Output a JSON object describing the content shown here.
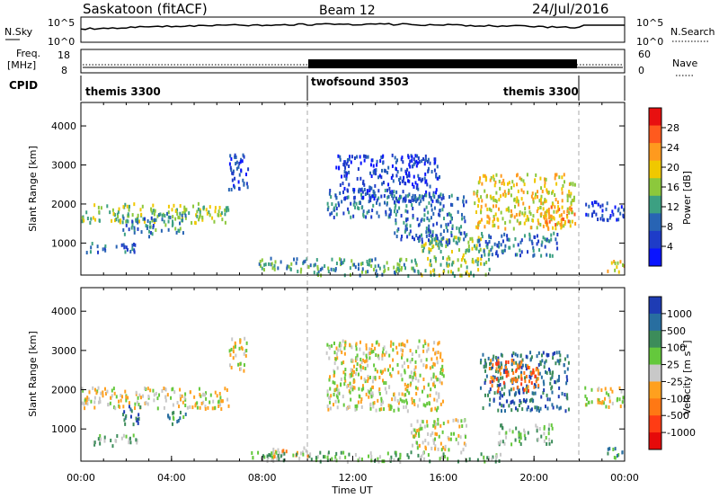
{
  "header": {
    "station": "Saskatoon (fitACF)",
    "beam": "Beam 12",
    "date": "24/Jul/2016"
  },
  "nsky_panel": {
    "left_label": "N.Sky",
    "right_label": "N.Search",
    "left_ticks": [
      "10^5",
      "10^0"
    ],
    "right_ticks": [
      "10^5",
      "10^0"
    ]
  },
  "freq_panel": {
    "left_label_top": "Freq.",
    "left_label_bottom": "[MHz]",
    "left_ticks": [
      "18",
      "8"
    ],
    "right_label": "Nave",
    "right_ticks": [
      "60",
      "0"
    ]
  },
  "cpid_panel": {
    "label": "CPID",
    "segments": [
      {
        "name": "themis 3300",
        "start_hour": 0,
        "end_hour": 10
      },
      {
        "name": "twofsound 3503",
        "start_hour": 10,
        "end_hour": 22
      },
      {
        "name": "themis 3300",
        "start_hour": 22,
        "end_hour": 24
      }
    ]
  },
  "power_colorbar": {
    "label": "Power [dB]",
    "ticks": [
      "28",
      "24",
      "20",
      "16",
      "12",
      "8",
      "4"
    ],
    "colors": [
      "#e81010",
      "#ff5a1e",
      "#ff9a1e",
      "#f0c800",
      "#8cc83c",
      "#3ca082",
      "#2864b4",
      "#1e3cc8",
      "#0a14ff"
    ]
  },
  "velocity_colorbar": {
    "label": "Velocity [m s",
    "label_sup": "-1",
    "label_end": "]",
    "ticks": [
      "1000",
      "500",
      "100",
      "25",
      "-25",
      "-100",
      "-500",
      "-1000"
    ],
    "colors": [
      "#1e3cb4",
      "#286ea0",
      "#3c8c5a",
      "#64c83c",
      "#c8c8c8",
      "#ffa01e",
      "#ff7814",
      "#ff3c14",
      "#e60a0a"
    ]
  },
  "chart_data": [
    {
      "type": "heatmap",
      "name": "power",
      "ylabel": "Slant Range [km]",
      "yticks": [
        1000,
        2000,
        3000,
        4000
      ],
      "ylim": [
        180,
        4600
      ],
      "xlim": [
        0,
        24
      ],
      "regions": [
        {
          "t0": 0.0,
          "t1": 6.5,
          "r0": 1550,
          "r1": 2050,
          "level": 4
        },
        {
          "t0": 1.8,
          "t1": 3.2,
          "r0": 1200,
          "r1": 1700,
          "level": 6
        },
        {
          "t0": 3.0,
          "t1": 4.6,
          "r0": 1300,
          "r1": 1800,
          "level": 5
        },
        {
          "t0": 0.2,
          "t1": 2.5,
          "r0": 800,
          "r1": 1050,
          "level": 6
        },
        {
          "t0": 6.5,
          "t1": 7.4,
          "r0": 2400,
          "r1": 3400,
          "level": 7
        },
        {
          "t0": 7.8,
          "t1": 10.0,
          "r0": 300,
          "r1": 650,
          "level": 5
        },
        {
          "t0": 10.0,
          "t1": 15.0,
          "r0": 200,
          "r1": 650,
          "level": 5
        },
        {
          "t0": 15.0,
          "t1": 18.0,
          "r0": 200,
          "r1": 1200,
          "level": 4
        },
        {
          "t0": 10.8,
          "t1": 14.0,
          "r0": 1700,
          "r1": 2400,
          "level": 6
        },
        {
          "t0": 11.2,
          "t1": 15.8,
          "r0": 2100,
          "r1": 3300,
          "level": 7
        },
        {
          "t0": 13.8,
          "t1": 17.0,
          "r0": 1000,
          "r1": 2300,
          "level": 6
        },
        {
          "t0": 17.3,
          "t1": 21.8,
          "r0": 1400,
          "r1": 2800,
          "level": 3
        },
        {
          "t0": 17.5,
          "t1": 21.0,
          "r0": 700,
          "r1": 1300,
          "level": 6
        },
        {
          "t0": 20.5,
          "t1": 21.8,
          "r0": 1500,
          "r1": 2000,
          "level": 2
        },
        {
          "t0": 22.2,
          "t1": 24.0,
          "r0": 1600,
          "r1": 2100,
          "level": 7
        },
        {
          "t0": 23.2,
          "t1": 24.0,
          "r0": 300,
          "r1": 600,
          "level": 3
        }
      ]
    },
    {
      "type": "heatmap",
      "name": "velocity",
      "ylabel": "Slant Range [km]",
      "yticks": [
        1000,
        2000,
        3000,
        4000
      ],
      "ylim": [
        180,
        4600
      ],
      "xlim": [
        0,
        24
      ],
      "regions": [
        {
          "t0": 0.0,
          "t1": 6.5,
          "r0": 1550,
          "r1": 2100,
          "level": 4
        },
        {
          "t0": 1.8,
          "t1": 2.6,
          "r0": 1150,
          "r1": 1650,
          "level": 1
        },
        {
          "t0": 3.8,
          "t1": 4.6,
          "r0": 1150,
          "r1": 1550,
          "level": 2
        },
        {
          "t0": 0.5,
          "t1": 2.5,
          "r0": 600,
          "r1": 900,
          "level": 3
        },
        {
          "t0": 6.5,
          "t1": 7.3,
          "r0": 2500,
          "r1": 3400,
          "level": 4
        },
        {
          "t0": 8.4,
          "t1": 10.0,
          "r0": 320,
          "r1": 600,
          "level": 5
        },
        {
          "t0": 7.5,
          "t1": 18.5,
          "r0": 200,
          "r1": 450,
          "level": 3
        },
        {
          "t0": 10.8,
          "t1": 16.0,
          "r0": 1500,
          "r1": 3300,
          "level": 4
        },
        {
          "t0": 14.5,
          "t1": 17.0,
          "r0": 500,
          "r1": 1300,
          "level": 4
        },
        {
          "t0": 17.6,
          "t1": 21.5,
          "r0": 1500,
          "r1": 3000,
          "level": 1
        },
        {
          "t0": 18.0,
          "t1": 20.2,
          "r0": 2000,
          "r1": 2800,
          "level": 6
        },
        {
          "t0": 18.4,
          "t1": 20.8,
          "r0": 650,
          "r1": 1150,
          "level": 3
        },
        {
          "t0": 22.2,
          "t1": 24.0,
          "r0": 1600,
          "r1": 2100,
          "level": 4
        },
        {
          "t0": 23.2,
          "t1": 24.0,
          "r0": 300,
          "r1": 600,
          "level": 2
        }
      ]
    }
  ],
  "x_axis": {
    "label": "Time UT",
    "ticks": [
      "00:00",
      "04:00",
      "08:00",
      "12:00",
      "16:00",
      "20:00",
      "00:00"
    ],
    "tick_hours": [
      0,
      4,
      8,
      12,
      16,
      20,
      24
    ]
  }
}
